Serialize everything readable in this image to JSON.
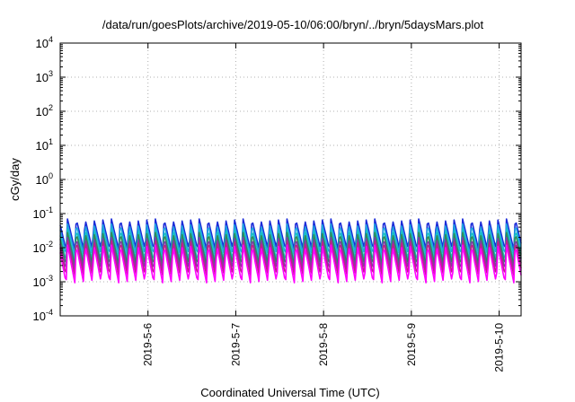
{
  "chart_data": {
    "type": "line",
    "title": "/data/run/goesPlots/archive/2019-05-10/06:00/bryn/../bryn/5daysMars.plot",
    "xlabel": "Coordinated Universal Time (UTC)",
    "ylabel": "cGy/day",
    "y_scale": "log",
    "ylim": [
      0.0001,
      10000
    ],
    "xlim": [
      "2019-05-05T00:00",
      "2019-05-10T06:00"
    ],
    "grid": true,
    "x_ticks": [
      "2019-5-6",
      "2019-5-7",
      "2019-5-8",
      "2019-5-9",
      "2019-5-10"
    ],
    "x_tick_values": [
      "2019-05-06T00:00",
      "2019-05-07T00:00",
      "2019-05-08T00:00",
      "2019-05-09T00:00",
      "2019-05-10T00:00"
    ],
    "y_ticks": [
      {
        "base": "10",
        "exp": "4",
        "value": 10000
      },
      {
        "base": "10",
        "exp": "3",
        "value": 1000
      },
      {
        "base": "10",
        "exp": "2",
        "value": 100
      },
      {
        "base": "10",
        "exp": "1",
        "value": 10
      },
      {
        "base": "10",
        "exp": "0",
        "value": 1
      },
      {
        "base": "10",
        "exp": "-1",
        "value": 0.1
      },
      {
        "base": "10",
        "exp": "-2",
        "value": 0.01
      },
      {
        "base": "10",
        "exp": "-3",
        "value": 0.001
      },
      {
        "base": "10",
        "exp": "-4",
        "value": 0.0001
      }
    ],
    "pattern": {
      "period_hours": 2.4,
      "cycles_per_day": 10,
      "note": "sawtooth oscillation"
    },
    "series": [
      {
        "color": "#1a2ad8",
        "peak": 0.07,
        "trough": 0.0085
      },
      {
        "color": "#1fa6e0",
        "peak": 0.05,
        "trough": 0.006
      },
      {
        "color": "#18c0c0",
        "peak": 0.035,
        "trough": 0.004
      },
      {
        "color": "#2e8b57",
        "peak": 0.028,
        "trough": 0.003
      },
      {
        "color": "#7b3fa6",
        "peak": 0.02,
        "trough": 0.0022
      },
      {
        "color": "#c0208a",
        "peak": 0.016,
        "trough": 0.0015
      },
      {
        "color": "#ff00ff",
        "peak": 0.012,
        "trough": 0.0009
      }
    ]
  }
}
